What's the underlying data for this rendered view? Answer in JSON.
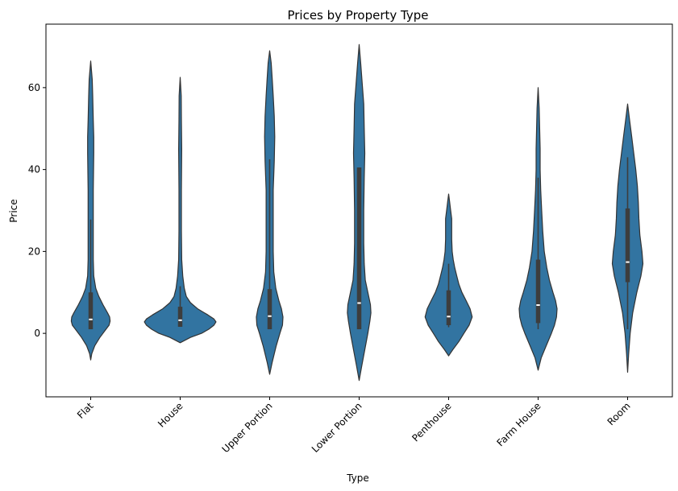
{
  "chart_data": {
    "type": "violin",
    "title": "Prices by Property Type",
    "xlabel": "Type",
    "ylabel": "Price",
    "ylim": [
      -15.5,
      75.5
    ],
    "yticks": [
      0,
      20,
      40,
      60
    ],
    "categories": [
      "Flat",
      "House",
      "Upper Portion",
      "Lower Portion",
      "Penthouse",
      "Farm House",
      "Room"
    ],
    "color": "#3274a1",
    "box_color": "#3d3d3d",
    "median_color": "#ffffff",
    "grid": false,
    "legend": "none",
    "violins": [
      {
        "category": "Flat",
        "min": -6.5,
        "max": 66.5,
        "q1": 1.0,
        "median": 3.4,
        "q3": 10.0,
        "whisker_low": 1.0,
        "whisker_high": 27.8,
        "density": [
          [
            -6.5,
            0
          ],
          [
            -5,
            1
          ],
          [
            -3,
            4
          ],
          [
            -1,
            9
          ],
          [
            1,
            15
          ],
          [
            2,
            18
          ],
          [
            3,
            19
          ],
          [
            4,
            18.5
          ],
          [
            5,
            16.5
          ],
          [
            7,
            12
          ],
          [
            9,
            8
          ],
          [
            11,
            5
          ],
          [
            14,
            3
          ],
          [
            18,
            2.5
          ],
          [
            25,
            2.5
          ],
          [
            35,
            2.5
          ],
          [
            44,
            3
          ],
          [
            48,
            3
          ],
          [
            52,
            2.5
          ],
          [
            58,
            2
          ],
          [
            62,
            1.5
          ],
          [
            66.5,
            0
          ]
        ]
      },
      {
        "category": "House",
        "min": -2.3,
        "max": 62.5,
        "q1": 1.6,
        "median": 3.2,
        "q3": 6.5,
        "whisker_low": 1.6,
        "whisker_high": 11.5,
        "density": [
          [
            -2.3,
            0
          ],
          [
            -1,
            10
          ],
          [
            0,
            21
          ],
          [
            1,
            28
          ],
          [
            2,
            33
          ],
          [
            2.8,
            35
          ],
          [
            3.5,
            33
          ],
          [
            4.5,
            27
          ],
          [
            6,
            17
          ],
          [
            7.5,
            10
          ],
          [
            9,
            6
          ],
          [
            11,
            4
          ],
          [
            14,
            2.5
          ],
          [
            18,
            1.5
          ],
          [
            25,
            1.2
          ],
          [
            35,
            1.2
          ],
          [
            45,
            1.5
          ],
          [
            52,
            1.2
          ],
          [
            58,
            1
          ],
          [
            62.5,
            0
          ]
        ]
      },
      {
        "category": "Upper Portion",
        "min": -10,
        "max": 69,
        "q1": 1.0,
        "median": 4.2,
        "q3": 10.8,
        "whisker_low": 1.0,
        "whisker_high": 42.5,
        "density": [
          [
            -10,
            0
          ],
          [
            -7,
            2.5
          ],
          [
            -3,
            6.5
          ],
          [
            0,
            10
          ],
          [
            2,
            12.5
          ],
          [
            4,
            13
          ],
          [
            6,
            11.5
          ],
          [
            8,
            9
          ],
          [
            11,
            6
          ],
          [
            15,
            4
          ],
          [
            20,
            3.5
          ],
          [
            28,
            3.5
          ],
          [
            35,
            3.5
          ],
          [
            42,
            4.5
          ],
          [
            48,
            5
          ],
          [
            53,
            4.5
          ],
          [
            58,
            3.5
          ],
          [
            62,
            2.5
          ],
          [
            66,
            1.5
          ],
          [
            69,
            0
          ]
        ]
      },
      {
        "category": "Lower Portion",
        "min": -11.5,
        "max": 70.5,
        "q1": 1.0,
        "median": 7.4,
        "q3": 40.5,
        "whisker_low": 1.0,
        "whisker_high": 40.5,
        "density": [
          [
            -11.5,
            0
          ],
          [
            -8,
            2.5
          ],
          [
            -4,
            5.5
          ],
          [
            0,
            8.5
          ],
          [
            3,
            10.5
          ],
          [
            5,
            11.5
          ],
          [
            7,
            11
          ],
          [
            10,
            8.5
          ],
          [
            13,
            6
          ],
          [
            17,
            5
          ],
          [
            22,
            4.5
          ],
          [
            30,
            4.5
          ],
          [
            38,
            5
          ],
          [
            44,
            5.5
          ],
          [
            50,
            5
          ],
          [
            56,
            4.5
          ],
          [
            61,
            3
          ],
          [
            66,
            1.5
          ],
          [
            70.5,
            0
          ]
        ]
      },
      {
        "category": "Penthouse",
        "min": -5.5,
        "max": 34,
        "q1": 2.0,
        "median": 4.1,
        "q3": 10.5,
        "whisker_low": 1.5,
        "whisker_high": 17.0,
        "density": [
          [
            -5.5,
            0
          ],
          [
            -4,
            4
          ],
          [
            -2,
            10
          ],
          [
            0,
            15
          ],
          [
            2,
            20
          ],
          [
            4,
            23
          ],
          [
            6,
            21
          ],
          [
            8,
            17
          ],
          [
            10,
            13
          ],
          [
            12,
            10
          ],
          [
            14,
            8
          ],
          [
            16,
            6
          ],
          [
            18,
            4.5
          ],
          [
            20,
            3.5
          ],
          [
            23,
            3
          ],
          [
            26,
            3
          ],
          [
            28,
            3
          ],
          [
            30,
            2
          ],
          [
            32,
            1
          ],
          [
            34,
            0
          ]
        ]
      },
      {
        "category": "Farm House",
        "min": -9,
        "max": 60,
        "q1": 2.5,
        "median": 6.9,
        "q3": 18.0,
        "whisker_low": 1.0,
        "whisker_high": 38.0,
        "density": [
          [
            -9,
            0
          ],
          [
            -6,
            3
          ],
          [
            -3,
            8
          ],
          [
            0,
            13
          ],
          [
            2,
            16
          ],
          [
            4,
            18
          ],
          [
            6,
            18.5
          ],
          [
            8,
            17
          ],
          [
            10,
            14.5
          ],
          [
            13,
            11
          ],
          [
            16,
            8.5
          ],
          [
            20,
            6
          ],
          [
            25,
            4.5
          ],
          [
            30,
            3.5
          ],
          [
            35,
            2.5
          ],
          [
            40,
            2
          ],
          [
            45,
            2
          ],
          [
            50,
            1.5
          ],
          [
            55,
            1
          ],
          [
            60,
            0
          ]
        ]
      },
      {
        "category": "Room",
        "min": -9.5,
        "max": 56,
        "q1": 12.5,
        "median": 17.4,
        "q3": 30.5,
        "whisker_low": 1.0,
        "whisker_high": 43.0,
        "density": [
          [
            -9.5,
            0
          ],
          [
            -5,
            1
          ],
          [
            0,
            2.5
          ],
          [
            5,
            5
          ],
          [
            10,
            9
          ],
          [
            14,
            13
          ],
          [
            17,
            15
          ],
          [
            20,
            14
          ],
          [
            24,
            12
          ],
          [
            28,
            11
          ],
          [
            32,
            10.5
          ],
          [
            36,
            9.5
          ],
          [
            40,
            8
          ],
          [
            44,
            6
          ],
          [
            48,
            4
          ],
          [
            52,
            2
          ],
          [
            56,
            0
          ]
        ]
      }
    ]
  }
}
